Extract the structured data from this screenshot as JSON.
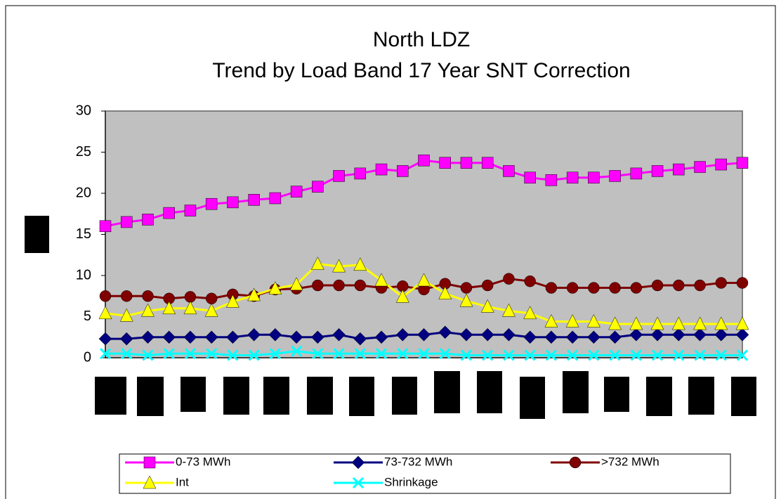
{
  "chart_data": {
    "type": "line",
    "title": "North LDZ",
    "subtitle": "Trend by Load Band 17 Year SNT Correction",
    "categories": [
      null,
      null,
      null,
      null,
      null,
      null,
      null,
      null,
      null,
      null,
      null,
      null,
      null,
      null,
      null,
      null,
      null,
      null,
      null,
      null,
      null,
      null,
      null,
      null,
      null,
      null,
      null,
      null,
      null,
      null,
      null
    ],
    "series": [
      {
        "name": "0-73 MWh",
        "color": "#ff00ff",
        "marker": "square",
        "values": [
          16.0,
          16.5,
          16.8,
          17.6,
          17.9,
          18.7,
          18.9,
          19.2,
          19.4,
          20.2,
          20.8,
          22.1,
          22.4,
          22.9,
          22.7,
          24.0,
          23.7,
          23.7,
          23.7,
          22.7,
          21.9,
          21.6,
          21.9,
          21.9,
          22.1,
          22.4,
          22.7,
          22.9,
          23.2,
          23.5,
          23.7
        ]
      },
      {
        "name": "73-732 MWh",
        "color": "#000080",
        "marker": "diamond",
        "values": [
          2.3,
          2.3,
          2.5,
          2.5,
          2.5,
          2.5,
          2.5,
          2.8,
          2.8,
          2.5,
          2.5,
          2.8,
          2.3,
          2.5,
          2.8,
          2.8,
          3.1,
          2.8,
          2.8,
          2.8,
          2.5,
          2.5,
          2.5,
          2.5,
          2.5,
          2.8,
          2.8,
          2.8,
          2.8,
          2.8,
          2.8
        ]
      },
      {
        "name": ">732 MWh",
        "color": "#800000",
        "marker": "circle",
        "values": [
          7.5,
          7.5,
          7.5,
          7.2,
          7.4,
          7.2,
          7.7,
          7.5,
          8.3,
          8.4,
          8.8,
          8.8,
          8.8,
          8.5,
          8.7,
          8.3,
          9.0,
          8.5,
          8.8,
          9.6,
          9.3,
          8.5,
          8.5,
          8.5,
          8.5,
          8.5,
          8.8,
          8.8,
          8.8,
          9.1,
          9.1
        ]
      },
      {
        "name": "Int",
        "color": "#ffff00",
        "marker": "triangle",
        "values": [
          5.4,
          5.1,
          5.7,
          6.0,
          6.0,
          5.7,
          6.8,
          7.6,
          8.4,
          8.9,
          11.4,
          11.1,
          11.3,
          9.4,
          7.4,
          9.4,
          7.8,
          6.9,
          6.2,
          5.7,
          5.4,
          4.4,
          4.4,
          4.4,
          4.1,
          4.1,
          4.1,
          4.1,
          4.1,
          4.1,
          4.1
        ]
      },
      {
        "name": "Shrinkage",
        "color": "#00ffff",
        "marker": "cross",
        "values": [
          0.5,
          0.5,
          0.3,
          0.5,
          0.5,
          0.5,
          0.3,
          0.3,
          0.5,
          0.8,
          0.5,
          0.5,
          0.5,
          0.5,
          0.5,
          0.5,
          0.5,
          0.3,
          0.3,
          0.3,
          0.3,
          0.3,
          0.3,
          0.3,
          0.3,
          0.3,
          0.3,
          0.3,
          0.3,
          0.3,
          0.3
        ]
      }
    ],
    "ylim": [
      0,
      30
    ],
    "yticks": [
      0,
      5,
      10,
      15,
      20,
      25,
      30
    ],
    "plot_background": "#c0c0c0",
    "grid": false,
    "legend": "bottom"
  }
}
